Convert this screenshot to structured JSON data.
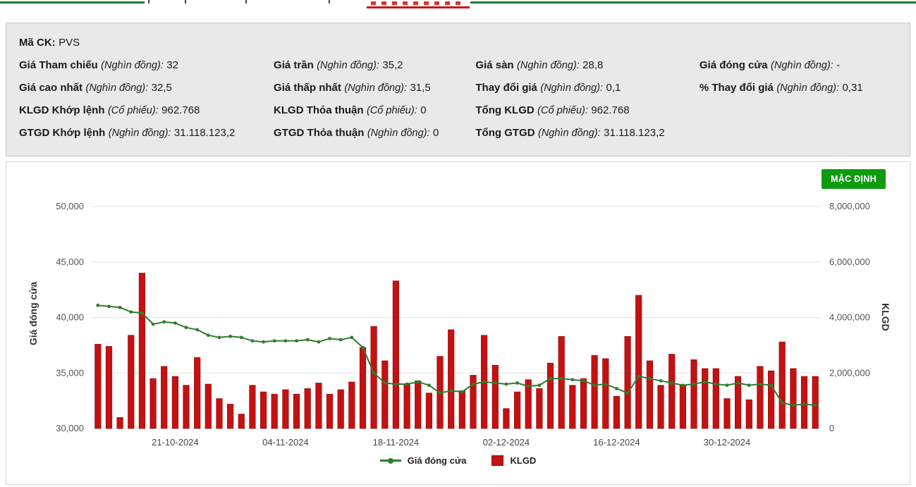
{
  "colors": {
    "bar": "#c41111",
    "bar_edge": "#960d0d",
    "line": "#2f7d2f",
    "button_green": "#0f9b0f",
    "nav_green": "#1d7a33",
    "nav_red": "#cc1111",
    "panel_bg": "#e9e9e9"
  },
  "info_panel": {
    "stock_code_label": "Mã CK:",
    "stock_code": "PVS",
    "cells": [
      {
        "label": "Giá Tham chiếu",
        "unit": "(Nghìn đồng):",
        "value": "32"
      },
      {
        "label": "Giá trần",
        "unit": "(Nghìn đồng):",
        "value": "35,2"
      },
      {
        "label": "Giá sàn",
        "unit": "(Nghìn đồng):",
        "value": "28,8"
      },
      {
        "label": "Giá đóng cửa",
        "unit": "(Nghìn đồng):",
        "value": "-"
      },
      {
        "label": "Giá cao nhất",
        "unit": "(Nghìn đồng):",
        "value": "32,5"
      },
      {
        "label": "Giá thấp nhất",
        "unit": "(Nghìn đồng):",
        "value": "31,5"
      },
      {
        "label": "Thay đổi giá",
        "unit": "(Nghìn đồng):",
        "value": "0,1"
      },
      {
        "label": "% Thay đổi giá",
        "unit": "(Nghìn đồng):",
        "value": "0,31"
      },
      {
        "label": "KLGD Khớp lệnh",
        "unit": "(Cổ phiếu):",
        "value": "962.768"
      },
      {
        "label": "KLGD Thỏa thuận",
        "unit": "(Cổ phiếu):",
        "value": "0"
      },
      {
        "label": "Tổng KLGD",
        "unit": "(Cổ phiếu):",
        "value": "962.768"
      },
      {
        "label": "GTGD Khớp lệnh",
        "unit": "(Nghìn đồng):",
        "value": "31.118.123,2"
      },
      {
        "label": "GTGD Thỏa thuận",
        "unit": "(Nghìn đồng):",
        "value": "0"
      },
      {
        "label": "Tổng GTGD",
        "unit": "(Nghìn đồng):",
        "value": "31.118.123,2"
      }
    ]
  },
  "chart_panel": {
    "button_label": "MẶC ĐỊNH",
    "left_axis_title": "Giá đóng cửa",
    "right_axis_title": "KLGD",
    "legend": [
      {
        "label": "Giá đóng cửa",
        "marker": "line"
      },
      {
        "label": "KLGD",
        "marker": "square"
      }
    ]
  },
  "chart_data": {
    "type": "mixed",
    "grid": "horizontal",
    "legend_position": "bottom",
    "x": [
      "10-10-2024",
      "11-10-2024",
      "14-10-2024",
      "15-10-2024",
      "16-10-2024",
      "17-10-2024",
      "18-10-2024",
      "21-10-2024",
      "22-10-2024",
      "23-10-2024",
      "24-10-2024",
      "25-10-2024",
      "28-10-2024",
      "29-10-2024",
      "30-10-2024",
      "31-10-2024",
      "01-11-2024",
      "04-11-2024",
      "05-11-2024",
      "06-11-2024",
      "07-11-2024",
      "08-11-2024",
      "11-11-2024",
      "12-11-2024",
      "13-11-2024",
      "14-11-2024",
      "15-11-2024",
      "18-11-2024",
      "19-11-2024",
      "20-11-2024",
      "21-11-2024",
      "22-11-2024",
      "25-11-2024",
      "26-11-2024",
      "27-11-2024",
      "28-11-2024",
      "29-11-2024",
      "02-12-2024",
      "03-12-2024",
      "04-12-2024",
      "05-12-2024",
      "06-12-2024",
      "09-12-2024",
      "10-12-2024",
      "11-12-2024",
      "12-12-2024",
      "13-12-2024",
      "16-12-2024",
      "17-12-2024",
      "18-12-2024",
      "19-12-2024",
      "20-12-2024",
      "23-12-2024",
      "24-12-2024",
      "25-12-2024",
      "26-12-2024",
      "27-12-2024",
      "30-12-2024",
      "31-12-2024",
      "02-01-2025",
      "03-01-2025",
      "06-01-2025",
      "07-01-2025",
      "08-01-2025",
      "09-01-2025",
      "10-01-2025"
    ],
    "x_tick_indices": [
      7,
      17,
      27,
      37,
      47,
      57
    ],
    "x_tick_labels": [
      "21-10-2024",
      "04-11-2024",
      "18-11-2024",
      "02-12-2024",
      "16-12-2024",
      "30-12-2024"
    ],
    "left_axis": {
      "title": "Giá đóng cửa",
      "min": 30000,
      "max": 50000,
      "tick_values": [
        50000,
        45000,
        40000,
        35000,
        30000
      ],
      "tick_labels": [
        "50,000",
        "45,000",
        "40,000",
        "35,000",
        "30,000"
      ]
    },
    "right_axis": {
      "title": "KLGD",
      "min": 0,
      "max": 8000000,
      "tick_values": [
        8000000,
        6000000,
        4000000,
        2000000,
        0
      ],
      "tick_labels": [
        "8,000,000",
        "6,000,000",
        "4,000,000",
        "2,000,000",
        "0"
      ]
    },
    "series": [
      {
        "name": "Giá đóng cửa",
        "type": "line",
        "axis": "left",
        "values": [
          41100,
          41000,
          40900,
          40500,
          40400,
          39400,
          39600,
          39500,
          39100,
          38900,
          38400,
          38200,
          38300,
          38200,
          37900,
          37800,
          37900,
          37900,
          37900,
          38000,
          37800,
          38100,
          38000,
          38200,
          37300,
          35000,
          34100,
          34000,
          34000,
          34200,
          33900,
          33200,
          33400,
          33300,
          34000,
          34200,
          34100,
          34000,
          34100,
          33800,
          33900,
          34500,
          34500,
          34400,
          34300,
          33900,
          34000,
          33600,
          33200,
          34700,
          34500,
          34300,
          34100,
          33900,
          34000,
          34200,
          34000,
          33900,
          34100,
          33900,
          34000,
          33900,
          32300,
          32100,
          32200,
          32100
        ]
      },
      {
        "name": "KLGD",
        "type": "bar",
        "axis": "right",
        "values": [
          3040000,
          2960000,
          400000,
          3360000,
          5600000,
          1800000,
          2240000,
          1880000,
          1560000,
          2560000,
          1600000,
          1080000,
          880000,
          520000,
          1560000,
          1320000,
          1240000,
          1400000,
          1240000,
          1440000,
          1640000,
          1240000,
          1400000,
          1680000,
          2920000,
          3680000,
          2440000,
          5320000,
          1600000,
          1720000,
          1280000,
          2600000,
          3560000,
          1360000,
          1920000,
          3360000,
          2280000,
          720000,
          1320000,
          1760000,
          1440000,
          2360000,
          3320000,
          1560000,
          1800000,
          2640000,
          2520000,
          1160000,
          3320000,
          4800000,
          2440000,
          1560000,
          2680000,
          1560000,
          2480000,
          2160000,
          2160000,
          1080000,
          1880000,
          1040000,
          2240000,
          2080000,
          3120000,
          2160000,
          1880000,
          1880000
        ]
      }
    ]
  }
}
